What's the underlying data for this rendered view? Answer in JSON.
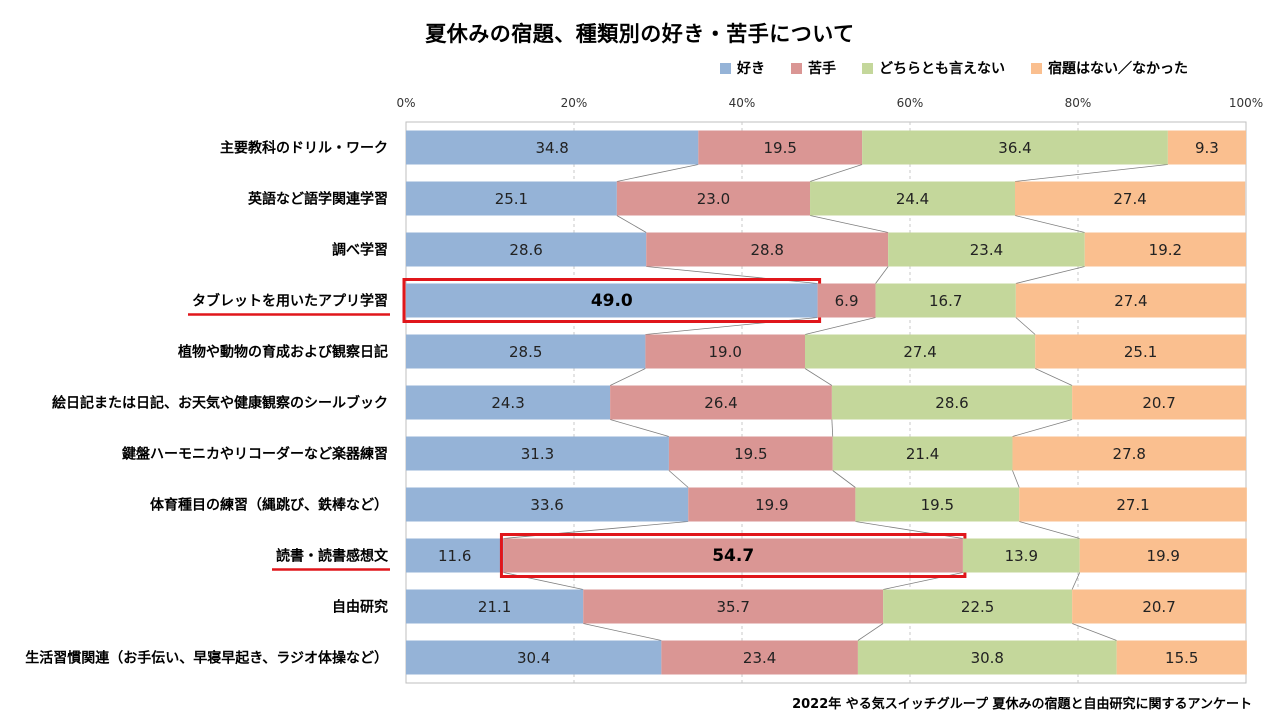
{
  "chart_data": {
    "type": "bar",
    "orientation": "horizontal-stacked-100",
    "title": "夏休みの宿題、種類別の好き・苦手について",
    "x_ticks": [
      "0%",
      "20%",
      "40%",
      "60%",
      "80%",
      "100%"
    ],
    "xlim": [
      0,
      100
    ],
    "legend_position": "top-right",
    "categories": [
      "主要教科のドリル・ワーク",
      "英語など語学関連学習",
      "調べ学習",
      "タブレットを用いたアプリ学習",
      "植物や動物の育成および観察日記",
      "絵日記または日記、お天気や健康観察のシールブック",
      "鍵盤ハーモニカやリコーダーなど楽器練習",
      "体育種目の練習（縄跳び、鉄棒など）",
      "読書・読書感想文",
      "自由研究",
      "生活習慣関連（お手伝い、早寝早起き、ラジオ体操など）"
    ],
    "series": [
      {
        "name": "好き",
        "color": "#95b3d7",
        "values": [
          34.8,
          25.1,
          28.6,
          49.0,
          28.5,
          24.3,
          31.3,
          33.6,
          11.6,
          21.1,
          30.4
        ]
      },
      {
        "name": "苦手",
        "color": "#da9694",
        "values": [
          19.5,
          23.0,
          28.8,
          6.9,
          19.0,
          26.4,
          19.5,
          19.9,
          54.7,
          35.7,
          23.4
        ]
      },
      {
        "name": "どちらとも言えない",
        "color": "#c4d79b",
        "values": [
          36.4,
          24.4,
          23.4,
          16.7,
          27.4,
          28.6,
          21.4,
          19.5,
          13.9,
          22.5,
          30.8
        ]
      },
      {
        "name": "宿題はない／なかった",
        "color": "#fabf8f",
        "values": [
          9.3,
          27.4,
          19.2,
          27.4,
          25.1,
          20.7,
          27.8,
          27.1,
          19.9,
          20.7,
          15.5
        ]
      }
    ],
    "highlights": [
      {
        "category_index": 3,
        "series_index": 0,
        "underline_label": true
      },
      {
        "category_index": 8,
        "series_index": 1,
        "underline_label": true
      }
    ],
    "highlight_color": "#e0161b",
    "source": "2022年 やる気スイッチグループ 夏休みの宿題と自由研究に関するアンケート"
  }
}
